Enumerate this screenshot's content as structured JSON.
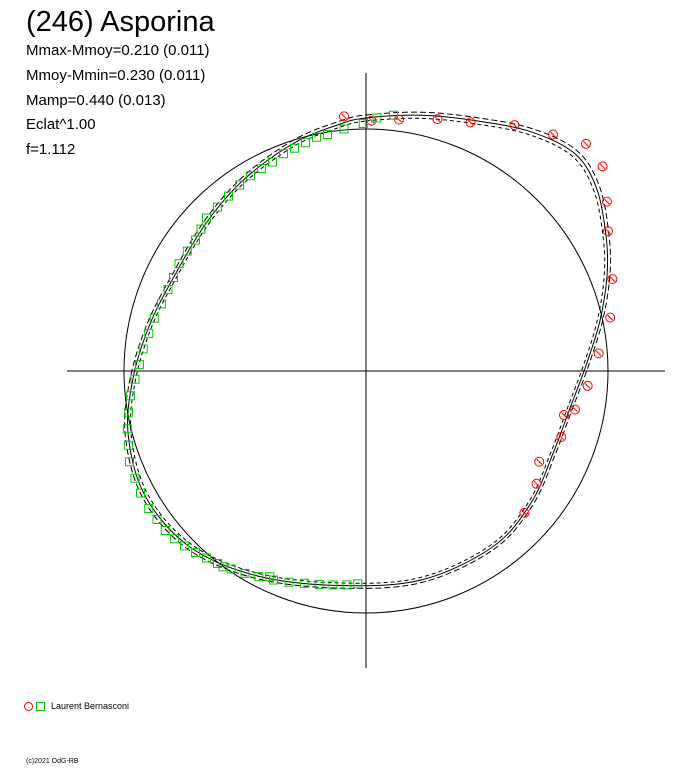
{
  "header": {
    "title": "(246) Asporina",
    "params": [
      "Mmax-Mmoy=0.210 (0.011)",
      "Mmoy-Mmin=0.230 (0.011)",
      "Mamp=0.440 (0.013)",
      "Eclat^1.00",
      "f=1.112"
    ]
  },
  "legend": {
    "observer": "Laurent Bernasconi"
  },
  "footer": {
    "copyright": "(c)2021 OdG-RB"
  },
  "colors": {
    "observer_circle": "#ff0000",
    "observer_square": "#00cc00",
    "axes": "#000000"
  },
  "chart_data": {
    "type": "scatter",
    "projection": "polar light curve (magnitude vs rotational phase)",
    "reference_circle_radius": 0.44,
    "mean_curve_series": 3,
    "series": [
      {
        "marker": "circle",
        "color": "#ff0000",
        "points": [
          [
            -0.04,
            0.463
          ],
          [
            0.01,
            0.455
          ],
          [
            0.06,
            0.457
          ],
          [
            0.13,
            0.458
          ],
          [
            0.19,
            0.452
          ],
          [
            0.27,
            0.447
          ],
          [
            0.34,
            0.43
          ],
          [
            0.4,
            0.413
          ],
          [
            0.43,
            0.372
          ],
          [
            0.438,
            0.308
          ],
          [
            0.44,
            0.254
          ],
          [
            0.448,
            0.167
          ],
          [
            0.444,
            0.097
          ],
          [
            0.423,
            0.032
          ],
          [
            0.403,
            -0.027
          ],
          [
            0.38,
            -0.07
          ],
          [
            0.36,
            -0.08
          ],
          [
            0.355,
            -0.12
          ],
          [
            0.315,
            -0.165
          ],
          [
            0.31,
            -0.205
          ],
          [
            0.288,
            -0.258
          ]
        ]
      },
      {
        "marker": "square",
        "color": "#00cc00",
        "points": [
          [
            0.05,
            0.465
          ],
          [
            0.02,
            0.46
          ],
          [
            -0.005,
            0.45
          ],
          [
            -0.04,
            0.44
          ],
          [
            -0.07,
            0.43
          ],
          [
            -0.09,
            0.425
          ],
          [
            -0.11,
            0.415
          ],
          [
            -0.13,
            0.405
          ],
          [
            -0.15,
            0.395
          ],
          [
            -0.17,
            0.38
          ],
          [
            -0.19,
            0.368
          ],
          [
            -0.21,
            0.355
          ],
          [
            -0.23,
            0.338
          ],
          [
            -0.25,
            0.318
          ],
          [
            -0.27,
            0.298
          ],
          [
            -0.29,
            0.278
          ],
          [
            -0.3,
            0.258
          ],
          [
            -0.31,
            0.238
          ],
          [
            -0.325,
            0.218
          ],
          [
            -0.34,
            0.195
          ],
          [
            -0.35,
            0.17
          ],
          [
            -0.36,
            0.148
          ],
          [
            -0.372,
            0.122
          ],
          [
            -0.385,
            0.096
          ],
          [
            -0.395,
            0.068
          ],
          [
            -0.405,
            0.04
          ],
          [
            -0.412,
            0.012
          ],
          [
            -0.42,
            -0.015
          ],
          [
            -0.428,
            -0.045
          ],
          [
            -0.432,
            -0.075
          ],
          [
            -0.434,
            -0.105
          ],
          [
            -0.432,
            -0.135
          ],
          [
            -0.43,
            -0.165
          ],
          [
            -0.42,
            -0.195
          ],
          [
            -0.41,
            -0.222
          ],
          [
            -0.395,
            -0.25
          ],
          [
            -0.38,
            -0.27
          ],
          [
            -0.365,
            -0.29
          ],
          [
            -0.348,
            -0.305
          ],
          [
            -0.33,
            -0.318
          ],
          [
            -0.31,
            -0.33
          ],
          [
            -0.29,
            -0.34
          ],
          [
            -0.27,
            -0.35
          ],
          [
            -0.245,
            -0.36
          ],
          [
            -0.22,
            -0.368
          ],
          [
            -0.195,
            -0.374
          ],
          [
            -0.168,
            -0.38
          ],
          [
            -0.14,
            -0.384
          ],
          [
            -0.112,
            -0.386
          ],
          [
            -0.085,
            -0.388
          ],
          [
            -0.06,
            -0.389
          ],
          [
            -0.035,
            -0.389
          ],
          [
            -0.015,
            -0.387
          ],
          [
            -0.175,
            -0.374
          ],
          [
            -0.26,
            -0.356
          ]
        ]
      }
    ],
    "legend": [
      "Laurent Bernasconi"
    ],
    "grid": false,
    "axes": "centered cross",
    "title": "(246) Asporina"
  }
}
